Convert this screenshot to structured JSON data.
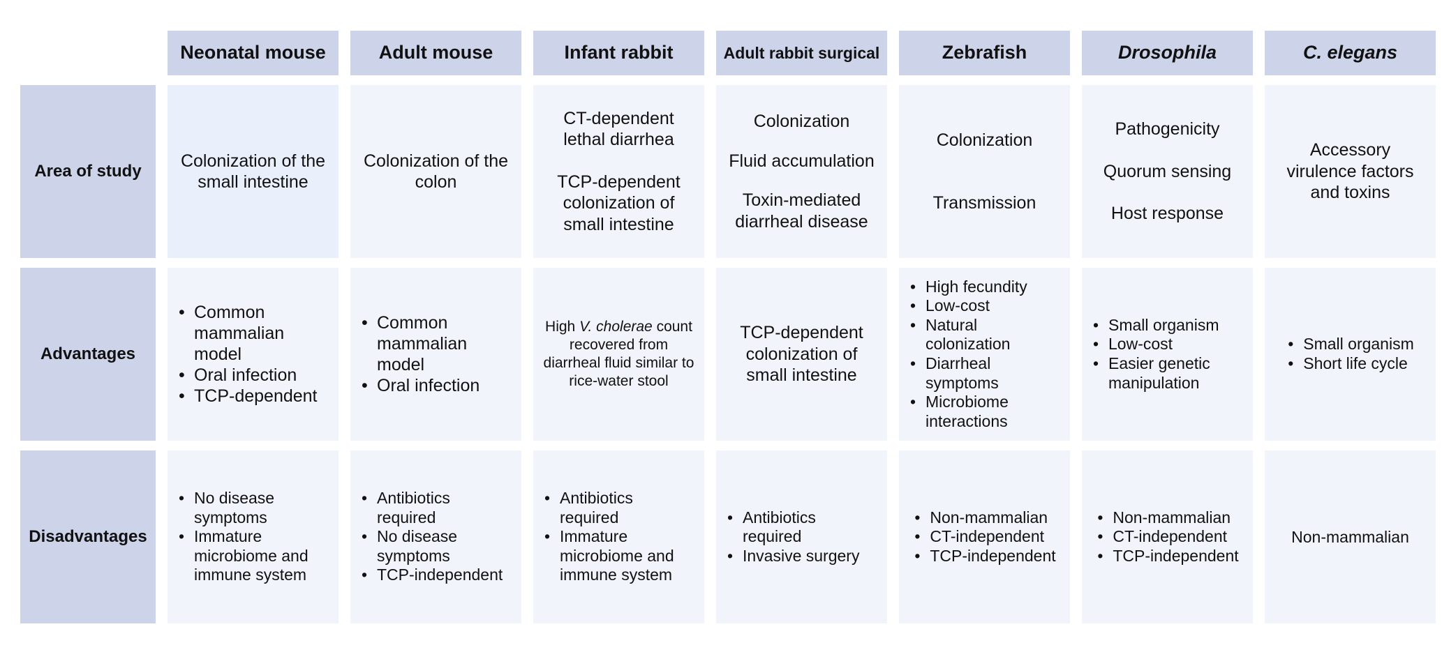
{
  "headers": [
    "Neonatal mouse",
    "Adult mouse",
    "Infant rabbit",
    "Adult rabbit surgical",
    "Zebrafish",
    "Drosophila",
    "C. elegans"
  ],
  "row_labels": {
    "area": "Area of study",
    "advantages": "Advantages",
    "disadvantages": "Disadvantages"
  },
  "area": {
    "neonatal_mouse": "Colonization of the small intestine",
    "adult_mouse": "Colonization of the colon",
    "infant_rabbit": [
      "CT-dependent lethal diarrhea",
      "TCP-dependent colonization of small intestine"
    ],
    "adult_rabbit": [
      "Colonization",
      "Fluid accumulation",
      "Toxin-mediated diarrheal disease"
    ],
    "zebrafish": [
      "Colonization",
      "Transmission"
    ],
    "drosophila": [
      "Pathogenicity",
      "Quorum sensing",
      "Host response"
    ],
    "c_elegans": "Accessory virulence factors and toxins"
  },
  "advantages": {
    "neonatal_mouse": [
      "Common mammalian model",
      "Oral infection",
      "TCP-dependent"
    ],
    "adult_mouse": [
      "Common mammalian model",
      "Oral infection"
    ],
    "infant_rabbit": {
      "pre": "High ",
      "italic": "V. cholerae",
      "post": " count recovered from diarrheal fluid similar to rice-water stool"
    },
    "adult_rabbit": "TCP-dependent colonization of small intestine",
    "zebrafish": [
      "High fecundity",
      "Low-cost",
      "Natural colonization",
      "Diarrheal symptoms",
      "Microbiome interactions"
    ],
    "drosophila": [
      "Small organism",
      "Low-cost",
      "Easier genetic manipulation"
    ],
    "c_elegans": [
      "Small organism",
      "Short life cycle"
    ]
  },
  "disadvantages": {
    "neonatal_mouse": [
      "No disease symptoms",
      "Immature microbiome and immune system"
    ],
    "adult_mouse": [
      "Antibiotics required",
      "No disease symptoms",
      "TCP-independent"
    ],
    "infant_rabbit": [
      "Antibiotics required",
      "Immature microbiome and immune system"
    ],
    "adult_rabbit": [
      "Antibiotics required",
      "Invasive surgery"
    ],
    "zebrafish": [
      "Non-mammalian",
      "CT-independent",
      "TCP-independent"
    ],
    "drosophila": [
      "Non-mammalian",
      "CT-independent",
      "TCP-independent"
    ],
    "c_elegans": "Non-mammalian"
  },
  "colors": {
    "header_bg": "#cdd3e8",
    "cell_bg": "#f1f4fa",
    "highlight_cell_bg": "#eaf0fb"
  }
}
